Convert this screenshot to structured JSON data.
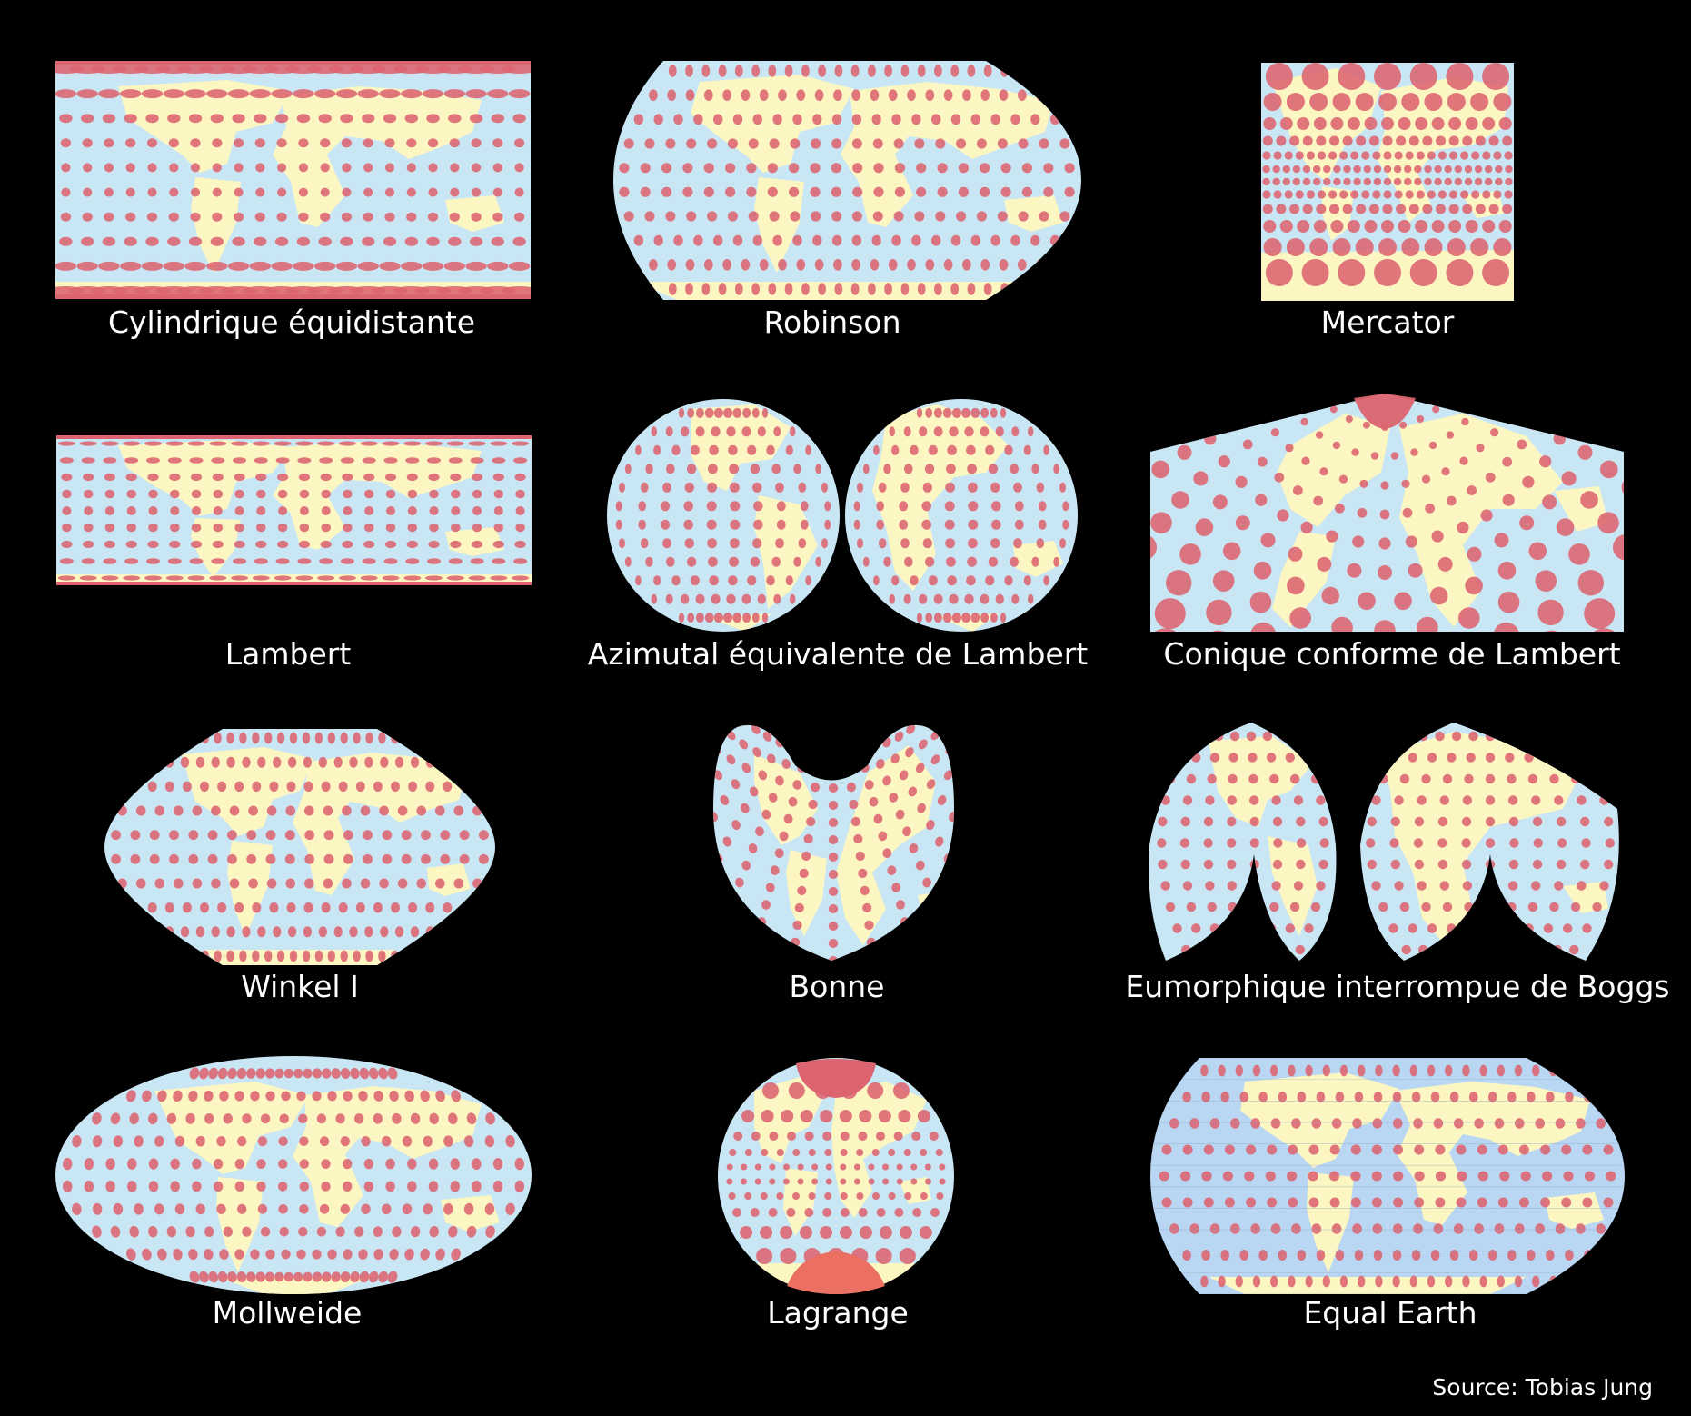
{
  "colors": {
    "background": "#000000",
    "ocean": "#c9e6f4",
    "ocean_equal_earth": "#b9d6f2",
    "land": "#fcf6c2",
    "ellipse": "#dc6470",
    "caption_text": "#ffffff"
  },
  "projections": [
    {
      "id": "equirect",
      "label": "Cylindrique équidistante"
    },
    {
      "id": "robinson",
      "label": "Robinson"
    },
    {
      "id": "mercator",
      "label": "Mercator"
    },
    {
      "id": "lambert",
      "label": "Lambert"
    },
    {
      "id": "azimuthal",
      "label": "Azimutal équivalente de Lambert"
    },
    {
      "id": "conic",
      "label": "Conique conforme de Lambert"
    },
    {
      "id": "winkel",
      "label": "Winkel I"
    },
    {
      "id": "bonne",
      "label": "Bonne"
    },
    {
      "id": "boggs",
      "label": "Eumorphique interrompue de Boggs"
    },
    {
      "id": "mollweide",
      "label": "Mollweide"
    },
    {
      "id": "lagrange",
      "label": "Lagrange"
    },
    {
      "id": "equalearth",
      "label": "Equal Earth"
    }
  ],
  "source": "Source: Tobias Jung"
}
